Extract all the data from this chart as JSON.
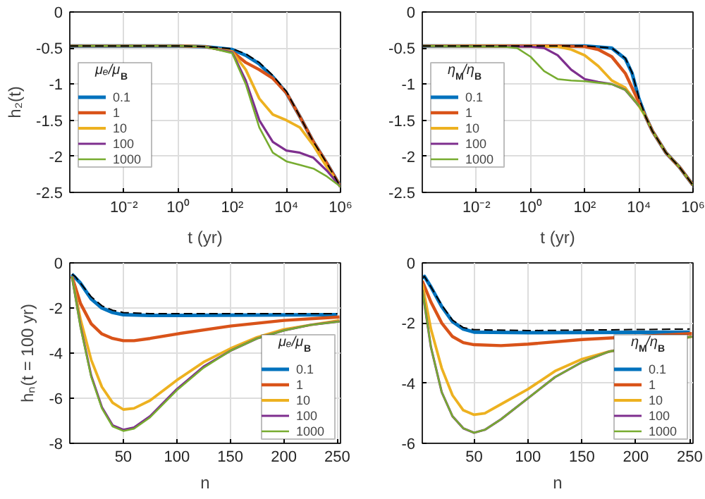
{
  "chart_data": [
    {
      "type": "line",
      "xlabel": "t (yr)",
      "ylabel": "h₂(t)",
      "log": "x",
      "grid": true,
      "legend": "bottom left",
      "legend_title": "μₑ/μ$_{B}$",
      "xlim": [
        0.0001,
        1000000
      ],
      "ylim": [
        -2.5,
        0
      ],
      "xticks": [
        {
          "value": 0.01,
          "label": "10⁻²"
        },
        {
          "value": 1,
          "label": "10⁰"
        },
        {
          "value": 100,
          "label": "10²"
        },
        {
          "value": 10000,
          "label": "10⁴"
        },
        {
          "value": 1000000,
          "label": "10⁶"
        }
      ],
      "yticks": [
        -2.5,
        -2,
        -1.5,
        -1,
        -0.5,
        0
      ],
      "series": [
        {
          "name": "0.1",
          "color": "#0072bd",
          "x": [
            0.0001,
            1,
            10,
            100,
            316,
            1000,
            3162,
            10000,
            31623,
            100000,
            316228,
            1000000
          ],
          "values": [
            -0.47,
            -0.47,
            -0.48,
            -0.52,
            -0.6,
            -0.72,
            -0.9,
            -1.12,
            -1.45,
            -1.8,
            -2.1,
            -2.42
          ]
        },
        {
          "name": "1",
          "color": "#d95319",
          "x": [
            0.0001,
            1,
            10,
            100,
            316,
            1000,
            3162,
            10000,
            31623,
            100000,
            316228,
            1000000
          ],
          "values": [
            -0.47,
            -0.47,
            -0.48,
            -0.55,
            -0.7,
            -0.8,
            -0.92,
            -1.12,
            -1.45,
            -1.8,
            -2.1,
            -2.42
          ]
        },
        {
          "name": "10",
          "color": "#edb120",
          "x": [
            0.0001,
            1,
            10,
            100,
            316,
            1000,
            3162,
            10000,
            31623,
            100000,
            316228,
            1000000
          ],
          "values": [
            -0.47,
            -0.47,
            -0.48,
            -0.55,
            -0.8,
            -1.2,
            -1.42,
            -1.5,
            -1.6,
            -1.85,
            -2.15,
            -2.42
          ]
        },
        {
          "name": "100",
          "color": "#7e2f8e",
          "x": [
            0.0001,
            1,
            10,
            100,
            316,
            1000,
            3162,
            10000,
            31623,
            100000,
            316228,
            1000000
          ],
          "values": [
            -0.47,
            -0.47,
            -0.48,
            -0.56,
            -0.95,
            -1.5,
            -1.8,
            -1.92,
            -1.95,
            -2.02,
            -2.2,
            -2.42
          ]
        },
        {
          "name": "1000",
          "color": "#77ac30",
          "x": [
            0.0001,
            1,
            10,
            100,
            316,
            1000,
            3162,
            10000,
            31623,
            100000,
            316228,
            1000000
          ],
          "values": [
            -0.47,
            -0.47,
            -0.48,
            -0.57,
            -1.0,
            -1.6,
            -1.95,
            -2.07,
            -2.12,
            -2.17,
            -2.28,
            -2.42
          ]
        },
        {
          "color": "#000000",
          "line_style": "dashed",
          "x": [
            0.0001,
            1,
            10,
            100,
            316,
            1000,
            3162,
            10000,
            31623,
            100000,
            316228,
            1000000
          ],
          "values": [
            -0.47,
            -0.47,
            -0.48,
            -0.51,
            -0.58,
            -0.7,
            -0.88,
            -1.1,
            -1.45,
            -1.8,
            -2.1,
            -2.42
          ]
        }
      ]
    },
    {
      "type": "line",
      "xlabel": "t (yr)",
      "log": "x",
      "grid": true,
      "legend": "bottom left",
      "legend_title": "η$_{M}$/η$_{B}$",
      "xlim": [
        0.0001,
        1000000
      ],
      "ylim": [
        -2.5,
        0
      ],
      "xticks": [
        {
          "value": 0.01,
          "label": "10⁻²"
        },
        {
          "value": 1,
          "label": "10⁰"
        },
        {
          "value": 100,
          "label": "10²"
        },
        {
          "value": 10000,
          "label": "10⁴"
        },
        {
          "value": 1000000,
          "label": "10⁶"
        }
      ],
      "yticks": [
        -2.5,
        -2,
        -1.5,
        -1,
        -0.5,
        0
      ],
      "series": [
        {
          "name": "0.1",
          "color": "#0072bd",
          "x": [
            0.0001,
            100,
            1000,
            3162,
            5623,
            10000,
            17783,
            31623,
            100000,
            316228,
            1000000
          ],
          "values": [
            -0.47,
            -0.47,
            -0.5,
            -0.65,
            -0.85,
            -1.2,
            -1.45,
            -1.65,
            -1.95,
            -2.15,
            -2.4
          ]
        },
        {
          "name": "1",
          "color": "#d95319",
          "x": [
            0.0001,
            10,
            100,
            316,
            1000,
            3162,
            10000,
            17783,
            31623,
            100000,
            316228,
            1000000
          ],
          "values": [
            -0.47,
            -0.47,
            -0.48,
            -0.52,
            -0.62,
            -0.85,
            -1.25,
            -1.45,
            -1.65,
            -1.95,
            -2.15,
            -2.4
          ]
        },
        {
          "name": "10",
          "color": "#edb120",
          "x": [
            0.0001,
            10,
            31.6,
            100,
            316,
            1000,
            3162,
            10000,
            17783
          ],
          "values": [
            -0.47,
            -0.48,
            -0.52,
            -0.6,
            -0.75,
            -0.95,
            -1.05,
            -1.3,
            -1.45
          ]
        },
        {
          "name": "100",
          "color": "#7e2f8e",
          "x": [
            0.0001,
            1,
            3.16,
            10,
            31.6,
            100,
            316,
            1000,
            3162,
            10000
          ],
          "values": [
            -0.47,
            -0.48,
            -0.5,
            -0.6,
            -0.8,
            -0.93,
            -0.97,
            -1.0,
            -1.08,
            -1.3
          ]
        },
        {
          "name": "1000",
          "color": "#77ac30",
          "x": [
            0.0001,
            0.1,
            0.316,
            1,
            3.16,
            10,
            31.6,
            100,
            316,
            1000,
            3162,
            10000,
            17783,
            31623,
            100000,
            316228,
            1000000
          ],
          "values": [
            -0.47,
            -0.48,
            -0.5,
            -0.62,
            -0.82,
            -0.93,
            -0.95,
            -0.96,
            -0.98,
            -1.0,
            -1.08,
            -1.3,
            -1.45,
            -1.65,
            -1.95,
            -2.15,
            -2.4
          ]
        },
        {
          "color": "#000000",
          "line_style": "dashed",
          "x": [
            0.0001,
            100,
            1000,
            3162,
            5623,
            10000,
            17783,
            31623,
            100000,
            316228,
            1000000
          ],
          "values": [
            -0.47,
            -0.47,
            -0.5,
            -0.64,
            -0.84,
            -1.19,
            -1.45,
            -1.65,
            -1.95,
            -2.15,
            -2.4
          ]
        }
      ]
    },
    {
      "type": "line",
      "xlabel": "n",
      "ylabel": "hₙ(t = 100 yr)",
      "grid": true,
      "legend": "bottom right",
      "legend_title": "μₑ/μ$_{B}$",
      "xlim": [
        0,
        253
      ],
      "ylim": [
        -8,
        0
      ],
      "xticks": [
        50,
        100,
        150,
        200,
        250
      ],
      "yticks": [
        -8,
        -6,
        -4,
        -2,
        0
      ],
      "series": [
        {
          "name": "0.1",
          "color": "#0072bd",
          "x": [
            2,
            10,
            20,
            30,
            40,
            50,
            75,
            100,
            250
          ],
          "values": [
            -0.5,
            -0.9,
            -1.6,
            -2.0,
            -2.2,
            -2.3,
            -2.33,
            -2.33,
            -2.3
          ]
        },
        {
          "name": "1",
          "color": "#d95319",
          "x": [
            2,
            10,
            20,
            30,
            40,
            50,
            60,
            75,
            100,
            150,
            200,
            252
          ],
          "values": [
            -0.6,
            -1.8,
            -2.7,
            -3.15,
            -3.35,
            -3.45,
            -3.45,
            -3.35,
            -3.15,
            -2.8,
            -2.55,
            -2.4
          ]
        },
        {
          "name": "10",
          "color": "#edb120",
          "x": [
            2,
            10,
            20,
            30,
            40,
            50,
            60,
            75,
            100,
            125,
            150,
            175,
            200,
            225,
            252
          ],
          "values": [
            -0.6,
            -2.5,
            -4.3,
            -5.5,
            -6.2,
            -6.5,
            -6.45,
            -6.1,
            -5.2,
            -4.4,
            -3.8,
            -3.3,
            -2.95,
            -2.75,
            -2.55
          ]
        },
        {
          "name": "100",
          "color": "#7e2f8e",
          "x": [
            2,
            10,
            20,
            30,
            40,
            50,
            60,
            75,
            100,
            125,
            150,
            175,
            200,
            225,
            252
          ],
          "values": [
            -0.6,
            -2.8,
            -5.0,
            -6.4,
            -7.2,
            -7.4,
            -7.3,
            -6.8,
            -5.6,
            -4.6,
            -3.9,
            -3.35,
            -3.0,
            -2.75,
            -2.6
          ]
        },
        {
          "name": "1000",
          "color": "#77ac30",
          "x": [
            2,
            10,
            20,
            30,
            40,
            50,
            60,
            75,
            100,
            125,
            150,
            175,
            200,
            225,
            252
          ],
          "values": [
            -0.6,
            -2.85,
            -5.05,
            -6.45,
            -7.25,
            -7.45,
            -7.35,
            -6.85,
            -5.65,
            -4.65,
            -3.9,
            -3.35,
            -3.0,
            -2.75,
            -2.6
          ]
        },
        {
          "color": "#000000",
          "line_style": "dashed",
          "x": [
            2,
            5,
            10,
            20,
            30,
            40,
            50,
            75,
            250
          ],
          "values": [
            -0.5,
            -0.6,
            -0.9,
            -1.5,
            -1.9,
            -2.1,
            -2.2,
            -2.25,
            -2.25
          ]
        }
      ]
    },
    {
      "type": "line",
      "xlabel": "n",
      "grid": true,
      "legend": "bottom right",
      "legend_title": "η$_{M}$/η$_{B}$",
      "xlim": [
        2,
        253
      ],
      "ylim": [
        -6,
        0
      ],
      "xticks": [
        50,
        100,
        150,
        200,
        250
      ],
      "yticks": [
        -6,
        -4,
        -2,
        0
      ],
      "series": [
        {
          "name": "0.1",
          "color": "#0072bd",
          "x": [
            2,
            4,
            10,
            20,
            30,
            40,
            50,
            100,
            250
          ],
          "values": [
            -0.5,
            -0.45,
            -0.8,
            -1.45,
            -1.95,
            -2.2,
            -2.3,
            -2.32,
            -2.3
          ]
        },
        {
          "name": "1",
          "color": "#d95319",
          "x": [
            2,
            10,
            20,
            30,
            40,
            50,
            75,
            100,
            150,
            252
          ],
          "values": [
            -0.6,
            -1.3,
            -2.0,
            -2.45,
            -2.65,
            -2.72,
            -2.75,
            -2.7,
            -2.55,
            -2.35
          ]
        },
        {
          "name": "10",
          "color": "#edb120",
          "x": [
            2,
            10,
            20,
            30,
            40,
            50,
            60,
            75,
            100,
            125,
            150,
            175,
            252
          ],
          "values": [
            -0.7,
            -2.2,
            -3.5,
            -4.4,
            -4.9,
            -5.05,
            -5.0,
            -4.7,
            -4.2,
            -3.6,
            -3.2,
            -2.95,
            -2.45
          ]
        },
        {
          "name": "100",
          "color": "#7e2f8e",
          "x": [
            2,
            10,
            20,
            30,
            40,
            50,
            60,
            75,
            100,
            125,
            150,
            175,
            252
          ],
          "values": [
            -0.9,
            -2.8,
            -4.3,
            -5.1,
            -5.5,
            -5.65,
            -5.55,
            -5.2,
            -4.5,
            -3.8,
            -3.3,
            -2.95,
            -2.45
          ]
        },
        {
          "name": "1000",
          "color": "#77ac30",
          "x": [
            2,
            10,
            20,
            30,
            40,
            50,
            60,
            75,
            100,
            125,
            150,
            175,
            252
          ],
          "values": [
            -0.9,
            -2.8,
            -4.3,
            -5.1,
            -5.5,
            -5.65,
            -5.55,
            -5.2,
            -4.5,
            -3.8,
            -3.3,
            -2.95,
            -2.45
          ]
        },
        {
          "color": "#000000",
          "line_style": "dashed",
          "x": [
            2,
            4,
            10,
            20,
            30,
            40,
            50,
            100,
            250
          ],
          "values": [
            -0.5,
            -0.45,
            -0.8,
            -1.4,
            -1.9,
            -2.15,
            -2.22,
            -2.25,
            -2.2
          ]
        }
      ]
    }
  ]
}
